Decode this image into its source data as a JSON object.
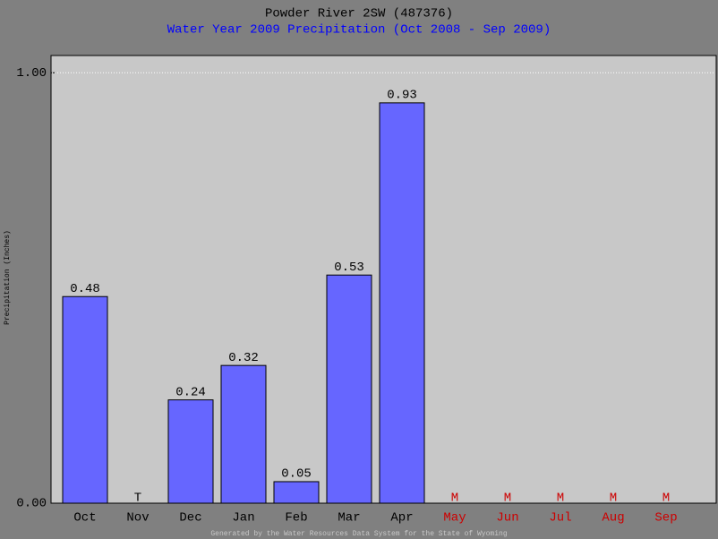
{
  "chart_data": {
    "type": "bar",
    "title": "Powder River 2SW (487376)",
    "subtitle": "Water Year 2009 Precipitation (Oct 2008 - Sep 2009)",
    "y_label": "Precipitation (Inches)",
    "footer": "Generated by the Water Resources Data System for the State of Wyoming",
    "categories": [
      "Oct",
      "Nov",
      "Dec",
      "Jan",
      "Feb",
      "Mar",
      "Apr",
      "May",
      "Jun",
      "Jul",
      "Aug",
      "Sep"
    ],
    "category_colors": [
      "#000000",
      "#000000",
      "#000000",
      "#000000",
      "#000000",
      "#000000",
      "#000000",
      "#cc0000",
      "#cc0000",
      "#cc0000",
      "#cc0000",
      "#cc0000"
    ],
    "values": [
      0.48,
      null,
      0.24,
      0.32,
      0.05,
      0.53,
      0.93,
      null,
      null,
      null,
      null,
      null
    ],
    "value_labels": [
      "0.48",
      "T",
      "0.24",
      "0.32",
      "0.05",
      "0.53",
      "0.93",
      "M",
      "M",
      "M",
      "M",
      "M"
    ],
    "color": "#6666ff",
    "ylim": [
      0,
      1.04
    ],
    "yticks": [
      {
        "value": 0,
        "label": "0.00"
      },
      {
        "value": 1,
        "label": "1.00"
      }
    ],
    "grid": true
  }
}
